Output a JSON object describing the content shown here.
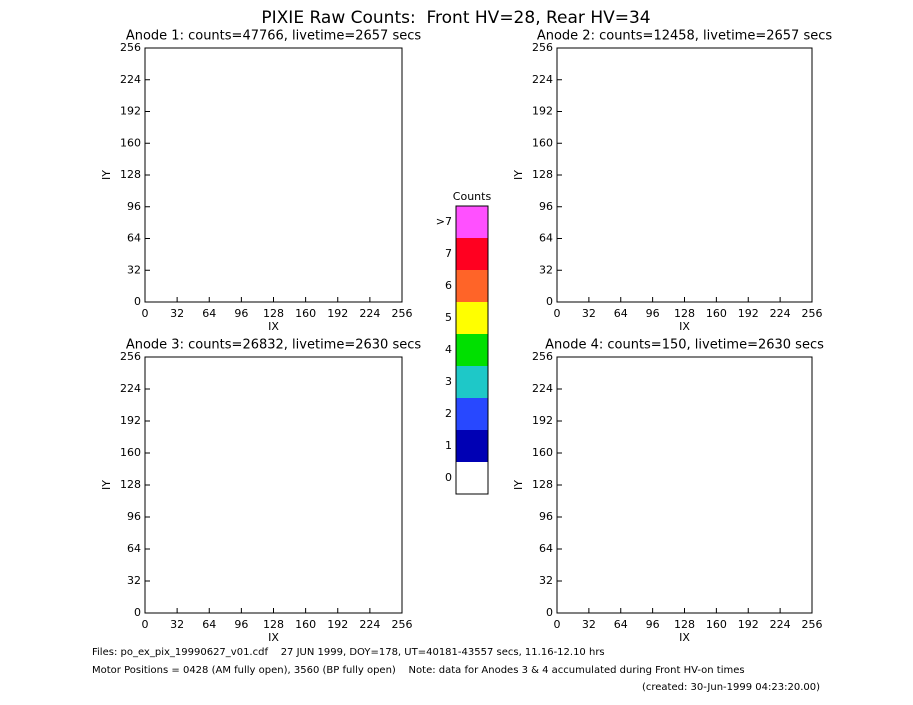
{
  "title": "PIXIE Raw Counts:  Front HV=28, Rear HV=34",
  "chart_data": [
    {
      "type": "heatmap",
      "title": "Anode 1: counts=47766, livetime=2657 secs",
      "xlabel": "IX",
      "ylabel": "IY",
      "xlim": [
        0,
        256
      ],
      "ylim": [
        0,
        256
      ],
      "xticks": [
        0,
        32,
        64,
        96,
        128,
        160,
        192,
        224,
        256
      ],
      "yticks": [
        0,
        32,
        64,
        96,
        128,
        160,
        192,
        224,
        256
      ]
    },
    {
      "type": "heatmap",
      "title": "Anode 2: counts=12458, livetime=2657 secs",
      "xlabel": "IX",
      "ylabel": "IY",
      "xlim": [
        0,
        256
      ],
      "ylim": [
        0,
        256
      ],
      "xticks": [
        0,
        32,
        64,
        96,
        128,
        160,
        192,
        224,
        256
      ],
      "yticks": [
        0,
        32,
        64,
        96,
        128,
        160,
        192,
        224,
        256
      ]
    },
    {
      "type": "heatmap",
      "title": "Anode 3: counts=26832, livetime=2630 secs",
      "xlabel": "IX",
      "ylabel": "IY",
      "xlim": [
        0,
        256
      ],
      "ylim": [
        0,
        256
      ],
      "xticks": [
        0,
        32,
        64,
        96,
        128,
        160,
        192,
        224,
        256
      ],
      "yticks": [
        0,
        32,
        64,
        96,
        128,
        160,
        192,
        224,
        256
      ]
    },
    {
      "type": "heatmap",
      "title": "Anode 4: counts=150, livetime=2630 secs",
      "xlabel": "IX",
      "ylabel": "IY",
      "xlim": [
        0,
        256
      ],
      "ylim": [
        0,
        256
      ],
      "xticks": [
        0,
        32,
        64,
        96,
        128,
        160,
        192,
        224,
        256
      ],
      "yticks": [
        0,
        32,
        64,
        96,
        128,
        160,
        192,
        224,
        256
      ]
    }
  ],
  "colorbar": {
    "title": "Counts",
    "labels": [
      "0",
      "1",
      "2",
      "3",
      "4",
      "5",
      "6",
      "7",
      ">7"
    ],
    "colors": [
      "#ffffff",
      "#0000b4",
      "#2848ff",
      "#1ec8c8",
      "#00e000",
      "#ffff00",
      "#ff6428",
      "#ff0020",
      "#ff50ff"
    ]
  },
  "footer": [
    "Files: po_ex_pix_19990627_v01.cdf    27 JUN 1999, DOY=178, UT=40181-43557 secs, 11.16-12.10 hrs",
    "Motor Positions = 0428 (AM fully open), 3560 (BP fully open)    Note: data for Anodes 3 & 4 accumulated during Front HV-on times",
    "(created: 30-Jun-1999 04:23:20.00)"
  ]
}
